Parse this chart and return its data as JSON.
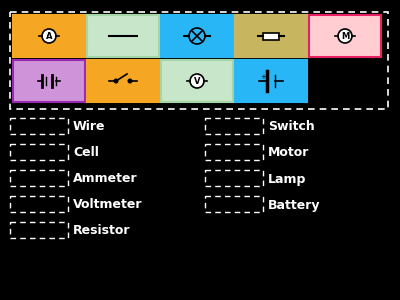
{
  "bg_color": "#000000",
  "top_row_symbols": [
    "ammeter",
    "wire",
    "lamp",
    "resistor",
    "motor"
  ],
  "top_row_bg": [
    "#f5a623",
    "#c8e6c9",
    "#29b6f6",
    "#c8b560",
    "#ffcdd2"
  ],
  "top_row_edge": [
    "#f5a623",
    "#a5d6a7",
    "#29b6f6",
    "#c8b560",
    "#e91e63"
  ],
  "bottom_row_symbols": [
    "battery",
    "switch",
    "voltmeter",
    "cell"
  ],
  "bottom_row_bg": [
    "#ce93d8",
    "#f5a623",
    "#c8e6c9",
    "#29b6f6"
  ],
  "bottom_row_edge": [
    "#9c27b0",
    "#f5a623",
    "#a5d6a7",
    "#29b6f6"
  ],
  "labels_left": [
    "Wire",
    "Cell",
    "Ammeter",
    "Voltmeter",
    "Resistor"
  ],
  "labels_right": [
    "Switch",
    "Motor",
    "Lamp",
    "Battery"
  ],
  "white": "#ffffff",
  "black": "#000000"
}
